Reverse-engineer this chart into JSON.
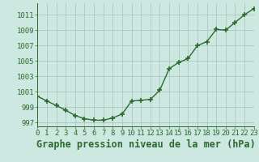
{
  "x": [
    0,
    1,
    2,
    3,
    4,
    5,
    6,
    7,
    8,
    9,
    10,
    11,
    12,
    13,
    14,
    15,
    16,
    17,
    18,
    19,
    20,
    21,
    22,
    23
  ],
  "y": [
    1000.4,
    999.8,
    999.2,
    998.6,
    997.9,
    997.5,
    997.3,
    997.3,
    997.6,
    998.1,
    999.8,
    999.9,
    1000.0,
    1001.2,
    1004.0,
    1004.8,
    1005.3,
    1007.0,
    1007.5,
    1009.1,
    1009.0,
    1010.0,
    1011.0,
    1011.8
  ],
  "line_color": "#2d6a2d",
  "marker": "+",
  "marker_size": 4,
  "marker_linewidth": 1.2,
  "linewidth": 1.0,
  "background_color": "#cce8e0",
  "grid_color": "#aac8c0",
  "xlabel": "Graphe pression niveau de la mer (hPa)",
  "ylabel_ticks": [
    997,
    999,
    1001,
    1003,
    1005,
    1007,
    1009,
    1011
  ],
  "xticks": [
    0,
    1,
    2,
    3,
    4,
    5,
    6,
    7,
    8,
    9,
    10,
    11,
    12,
    13,
    14,
    15,
    16,
    17,
    18,
    19,
    20,
    21,
    22,
    23
  ],
  "xlim": [
    0,
    23
  ],
  "ylim": [
    996.5,
    1012.5
  ],
  "tick_color": "#2d6a2d",
  "tick_fontsize": 6.5,
  "label_fontsize": 8.5
}
